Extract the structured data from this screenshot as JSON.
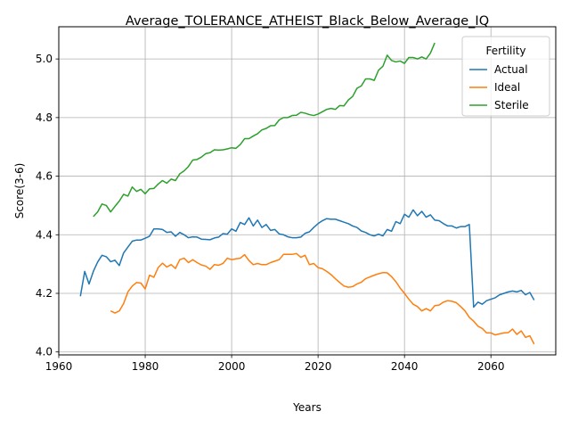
{
  "chart_data": {
    "type": "line",
    "title": "Average_TOLERANCE_ATHEIST_Black_Below_Average_IQ",
    "xlabel": "Years",
    "ylabel": "Score(3-6)",
    "xlim": [
      1960,
      2075
    ],
    "ylim": [
      3.99,
      5.11
    ],
    "xticks": [
      1960,
      1980,
      2000,
      2020,
      2040,
      2060
    ],
    "yticks": [
      4.0,
      4.2,
      4.4,
      4.6,
      4.8,
      5.0
    ],
    "xtick_labels": [
      "1960",
      "1980",
      "2000",
      "2020",
      "2040",
      "2060"
    ],
    "ytick_labels": [
      "4.0",
      "4.2",
      "4.4",
      "4.6",
      "4.8",
      "5.0"
    ],
    "grid": true,
    "legend": {
      "title": "Fertility",
      "placement": "top-right"
    },
    "series": [
      {
        "name": "Actual",
        "color": "#1f77b4",
        "points": [
          [
            1965,
            4.19
          ],
          [
            1966,
            4.275
          ],
          [
            1967,
            4.232
          ],
          [
            1968,
            4.275
          ],
          [
            1969,
            4.307
          ],
          [
            1970,
            4.33
          ],
          [
            1971,
            4.325
          ],
          [
            1972,
            4.308
          ],
          [
            1973,
            4.313
          ],
          [
            1974,
            4.295
          ],
          [
            1975,
            4.338
          ],
          [
            1976,
            4.358
          ],
          [
            1977,
            4.378
          ],
          [
            1978,
            4.382
          ],
          [
            1979,
            4.382
          ],
          [
            1980,
            4.388
          ],
          [
            1981,
            4.395
          ],
          [
            1982,
            4.42
          ],
          [
            1983,
            4.42
          ],
          [
            1984,
            4.418
          ],
          [
            1985,
            4.408
          ],
          [
            1986,
            4.41
          ],
          [
            1987,
            4.395
          ],
          [
            1988,
            4.408
          ],
          [
            1989,
            4.4
          ],
          [
            1990,
            4.39
          ],
          [
            1991,
            4.393
          ],
          [
            1992,
            4.392
          ],
          [
            1993,
            4.385
          ],
          [
            1994,
            4.384
          ],
          [
            1995,
            4.383
          ],
          [
            1996,
            4.389
          ],
          [
            1997,
            4.392
          ],
          [
            1998,
            4.404
          ],
          [
            1999,
            4.402
          ],
          [
            2000,
            4.42
          ],
          [
            2001,
            4.412
          ],
          [
            2002,
            4.442
          ],
          [
            2003,
            4.435
          ],
          [
            2004,
            4.458
          ],
          [
            2005,
            4.43
          ],
          [
            2006,
            4.45
          ],
          [
            2007,
            4.425
          ],
          [
            2008,
            4.435
          ],
          [
            2009,
            4.415
          ],
          [
            2010,
            4.418
          ],
          [
            2011,
            4.403
          ],
          [
            2012,
            4.4
          ],
          [
            2013,
            4.393
          ],
          [
            2014,
            4.39
          ],
          [
            2015,
            4.39
          ],
          [
            2016,
            4.392
          ],
          [
            2017,
            4.405
          ],
          [
            2018,
            4.41
          ],
          [
            2019,
            4.425
          ],
          [
            2020,
            4.438
          ],
          [
            2021,
            4.448
          ],
          [
            2022,
            4.455
          ],
          [
            2023,
            4.453
          ],
          [
            2024,
            4.453
          ],
          [
            2025,
            4.448
          ],
          [
            2026,
            4.443
          ],
          [
            2027,
            4.438
          ],
          [
            2028,
            4.43
          ],
          [
            2029,
            4.425
          ],
          [
            2030,
            4.413
          ],
          [
            2031,
            4.408
          ],
          [
            2032,
            4.4
          ],
          [
            2033,
            4.396
          ],
          [
            2034,
            4.402
          ],
          [
            2035,
            4.396
          ],
          [
            2036,
            4.418
          ],
          [
            2037,
            4.412
          ],
          [
            2038,
            4.445
          ],
          [
            2039,
            4.438
          ],
          [
            2040,
            4.47
          ],
          [
            2041,
            4.46
          ],
          [
            2042,
            4.485
          ],
          [
            2043,
            4.465
          ],
          [
            2044,
            4.48
          ],
          [
            2045,
            4.46
          ],
          [
            2046,
            4.468
          ],
          [
            2047,
            4.45
          ],
          [
            2048,
            4.448
          ],
          [
            2049,
            4.438
          ],
          [
            2050,
            4.43
          ],
          [
            2051,
            4.43
          ],
          [
            2052,
            4.423
          ],
          [
            2053,
            4.428
          ],
          [
            2054,
            4.428
          ],
          [
            2055,
            4.435
          ],
          [
            2056,
            4.153
          ],
          [
            2057,
            4.17
          ],
          [
            2058,
            4.163
          ],
          [
            2059,
            4.175
          ],
          [
            2060,
            4.18
          ],
          [
            2061,
            4.185
          ],
          [
            2062,
            4.195
          ],
          [
            2063,
            4.2
          ],
          [
            2064,
            4.205
          ],
          [
            2065,
            4.208
          ],
          [
            2066,
            4.205
          ],
          [
            2067,
            4.21
          ],
          [
            2068,
            4.195
          ],
          [
            2069,
            4.203
          ],
          [
            2070,
            4.177
          ]
        ]
      },
      {
        "name": "Ideal",
        "color": "#ff7f0e",
        "points": [
          [
            1972,
            4.14
          ],
          [
            1973,
            4.133
          ],
          [
            1974,
            4.14
          ],
          [
            1975,
            4.165
          ],
          [
            1976,
            4.205
          ],
          [
            1977,
            4.225
          ],
          [
            1978,
            4.237
          ],
          [
            1979,
            4.235
          ],
          [
            1980,
            4.215
          ],
          [
            1981,
            4.262
          ],
          [
            1982,
            4.255
          ],
          [
            1983,
            4.288
          ],
          [
            1984,
            4.303
          ],
          [
            1985,
            4.29
          ],
          [
            1986,
            4.298
          ],
          [
            1987,
            4.285
          ],
          [
            1988,
            4.315
          ],
          [
            1989,
            4.32
          ],
          [
            1990,
            4.305
          ],
          [
            1991,
            4.315
          ],
          [
            1992,
            4.305
          ],
          [
            1993,
            4.297
          ],
          [
            1994,
            4.293
          ],
          [
            1995,
            4.282
          ],
          [
            1996,
            4.298
          ],
          [
            1997,
            4.296
          ],
          [
            1998,
            4.302
          ],
          [
            1999,
            4.32
          ],
          [
            2000,
            4.315
          ],
          [
            2001,
            4.318
          ],
          [
            2002,
            4.32
          ],
          [
            2003,
            4.332
          ],
          [
            2004,
            4.312
          ],
          [
            2005,
            4.298
          ],
          [
            2006,
            4.302
          ],
          [
            2007,
            4.298
          ],
          [
            2008,
            4.298
          ],
          [
            2009,
            4.305
          ],
          [
            2010,
            4.31
          ],
          [
            2011,
            4.315
          ],
          [
            2012,
            4.333
          ],
          [
            2013,
            4.333
          ],
          [
            2014,
            4.333
          ],
          [
            2015,
            4.336
          ],
          [
            2016,
            4.323
          ],
          [
            2017,
            4.33
          ],
          [
            2018,
            4.298
          ],
          [
            2019,
            4.302
          ],
          [
            2020,
            4.288
          ],
          [
            2021,
            4.284
          ],
          [
            2022,
            4.275
          ],
          [
            2023,
            4.264
          ],
          [
            2024,
            4.25
          ],
          [
            2025,
            4.237
          ],
          [
            2026,
            4.225
          ],
          [
            2027,
            4.221
          ],
          [
            2028,
            4.223
          ],
          [
            2029,
            4.232
          ],
          [
            2030,
            4.238
          ],
          [
            2031,
            4.25
          ],
          [
            2032,
            4.256
          ],
          [
            2033,
            4.262
          ],
          [
            2034,
            4.267
          ],
          [
            2035,
            4.271
          ],
          [
            2036,
            4.27
          ],
          [
            2037,
            4.257
          ],
          [
            2038,
            4.24
          ],
          [
            2039,
            4.218
          ],
          [
            2040,
            4.2
          ],
          [
            2041,
            4.18
          ],
          [
            2042,
            4.163
          ],
          [
            2043,
            4.155
          ],
          [
            2044,
            4.14
          ],
          [
            2045,
            4.148
          ],
          [
            2046,
            4.14
          ],
          [
            2047,
            4.158
          ],
          [
            2048,
            4.16
          ],
          [
            2049,
            4.17
          ],
          [
            2050,
            4.175
          ],
          [
            2051,
            4.173
          ],
          [
            2052,
            4.168
          ],
          [
            2053,
            4.155
          ],
          [
            2054,
            4.14
          ],
          [
            2055,
            4.118
          ],
          [
            2056,
            4.105
          ],
          [
            2057,
            4.088
          ],
          [
            2058,
            4.08
          ],
          [
            2059,
            4.065
          ],
          [
            2060,
            4.065
          ],
          [
            2061,
            4.058
          ],
          [
            2062,
            4.062
          ],
          [
            2063,
            4.065
          ],
          [
            2064,
            4.066
          ],
          [
            2065,
            4.078
          ],
          [
            2066,
            4.06
          ],
          [
            2067,
            4.072
          ],
          [
            2068,
            4.05
          ],
          [
            2069,
            4.055
          ],
          [
            2070,
            4.027
          ]
        ]
      },
      {
        "name": "Sterile",
        "color": "#2ca02c",
        "points": [
          [
            1968,
            4.462
          ],
          [
            1969,
            4.478
          ],
          [
            1970,
            4.505
          ],
          [
            1971,
            4.5
          ],
          [
            1972,
            4.478
          ],
          [
            1973,
            4.497
          ],
          [
            1974,
            4.515
          ],
          [
            1975,
            4.538
          ],
          [
            1976,
            4.532
          ],
          [
            1977,
            4.563
          ],
          [
            1978,
            4.548
          ],
          [
            1979,
            4.555
          ],
          [
            1980,
            4.54
          ],
          [
            1981,
            4.557
          ],
          [
            1982,
            4.558
          ],
          [
            1983,
            4.573
          ],
          [
            1984,
            4.585
          ],
          [
            1985,
            4.576
          ],
          [
            1986,
            4.59
          ],
          [
            1987,
            4.585
          ],
          [
            1988,
            4.608
          ],
          [
            1989,
            4.618
          ],
          [
            1990,
            4.633
          ],
          [
            1991,
            4.655
          ],
          [
            1992,
            4.657
          ],
          [
            1993,
            4.665
          ],
          [
            1994,
            4.677
          ],
          [
            1995,
            4.68
          ],
          [
            1996,
            4.69
          ],
          [
            1997,
            4.689
          ],
          [
            1998,
            4.69
          ],
          [
            1999,
            4.693
          ],
          [
            2000,
            4.697
          ],
          [
            2001,
            4.695
          ],
          [
            2002,
            4.708
          ],
          [
            2003,
            4.728
          ],
          [
            2004,
            4.728
          ],
          [
            2005,
            4.737
          ],
          [
            2006,
            4.745
          ],
          [
            2007,
            4.758
          ],
          [
            2008,
            4.763
          ],
          [
            2009,
            4.772
          ],
          [
            2010,
            4.773
          ],
          [
            2011,
            4.792
          ],
          [
            2012,
            4.8
          ],
          [
            2013,
            4.8
          ],
          [
            2014,
            4.807
          ],
          [
            2015,
            4.808
          ],
          [
            2016,
            4.818
          ],
          [
            2017,
            4.815
          ],
          [
            2018,
            4.81
          ],
          [
            2019,
            4.807
          ],
          [
            2020,
            4.812
          ],
          [
            2021,
            4.82
          ],
          [
            2022,
            4.828
          ],
          [
            2023,
            4.831
          ],
          [
            2024,
            4.828
          ],
          [
            2025,
            4.841
          ],
          [
            2026,
            4.84
          ],
          [
            2027,
            4.86
          ],
          [
            2028,
            4.872
          ],
          [
            2029,
            4.9
          ],
          [
            2030,
            4.908
          ],
          [
            2031,
            4.932
          ],
          [
            2032,
            4.932
          ],
          [
            2033,
            4.927
          ],
          [
            2034,
            4.962
          ],
          [
            2035,
            4.975
          ],
          [
            2036,
            5.013
          ],
          [
            2037,
            4.995
          ],
          [
            2038,
            4.99
          ],
          [
            2039,
            4.993
          ],
          [
            2040,
            4.985
          ],
          [
            2041,
            5.005
          ],
          [
            2042,
            5.005
          ],
          [
            2043,
            5.0
          ],
          [
            2044,
            5.007
          ],
          [
            2045,
            5.0
          ],
          [
            2046,
            5.02
          ],
          [
            2047,
            5.055
          ]
        ]
      }
    ]
  }
}
